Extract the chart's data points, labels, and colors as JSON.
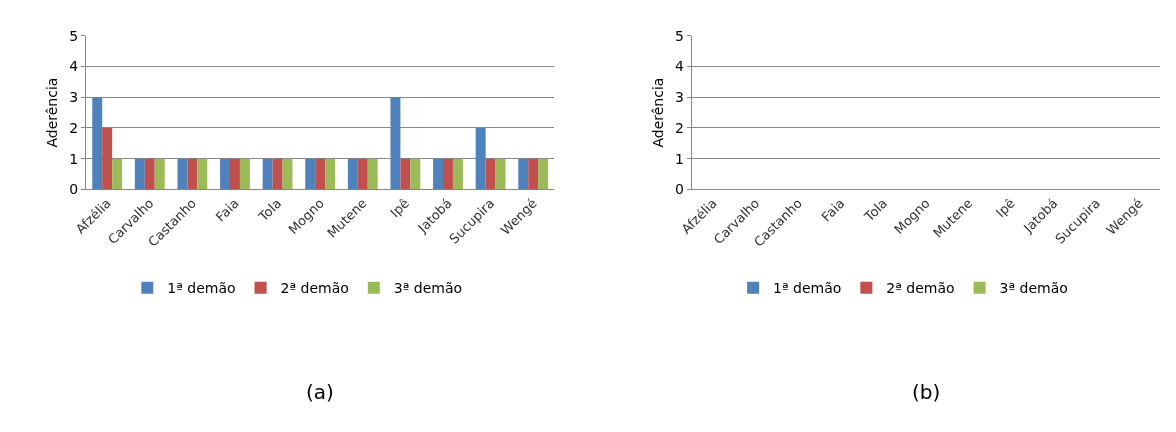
{
  "chart_data": [
    {
      "type": "bar",
      "ylabel": "Aderência",
      "categories": [
        "Afzélia",
        "Carvalho",
        "Castanho",
        "Faia",
        "Tola",
        "Mogno",
        "Mutene",
        "Ipê",
        "Jatobá",
        "Sucupira",
        "Wengé"
      ],
      "series": [
        {
          "name": "1ª demão",
          "color": "#4f81bd",
          "values": [
            3,
            1,
            1,
            1,
            1,
            1,
            1,
            3,
            1,
            2,
            1
          ]
        },
        {
          "name": "2ª demão",
          "color": "#c0504d",
          "values": [
            2,
            1,
            1,
            1,
            1,
            1,
            1,
            1,
            1,
            1,
            1
          ]
        },
        {
          "name": "3ª demão",
          "color": "#9bbb59",
          "values": [
            1,
            1,
            1,
            1,
            1,
            1,
            1,
            1,
            1,
            1,
            1
          ]
        }
      ],
      "ylim": [
        0,
        5
      ],
      "yticks": [
        0,
        1,
        2,
        3,
        4,
        5
      ],
      "grid": "y",
      "legend": "bottom",
      "annotations": [
        "(a)"
      ]
    },
    {
      "type": "bar",
      "ylabel": "Aderência",
      "categories": [
        "Afzélia",
        "Carvalho",
        "Castanho",
        "Faia",
        "Tola",
        "Mogno",
        "Mutene",
        "Ipê",
        "Jatobá",
        "Sucupira",
        "Wengé"
      ],
      "series": [
        {
          "name": "1ª demão",
          "color": "#4f81bd",
          "values": [
            0,
            0,
            0,
            0,
            0,
            0,
            0,
            0,
            0,
            0,
            0
          ]
        },
        {
          "name": "2ª demão",
          "color": "#c0504d",
          "values": [
            0,
            0,
            0,
            0,
            0,
            0,
            0,
            0,
            0,
            0,
            0
          ]
        },
        {
          "name": "3ª demão",
          "color": "#9bbb59",
          "values": [
            0,
            0,
            0,
            0,
            0,
            0,
            0,
            0,
            0,
            0,
            0
          ]
        }
      ],
      "ylim": [
        0,
        5
      ],
      "yticks": [
        0,
        1,
        2,
        3,
        4,
        5
      ],
      "grid": "y",
      "legend": "bottom",
      "annotations": [
        "(b)"
      ]
    }
  ]
}
